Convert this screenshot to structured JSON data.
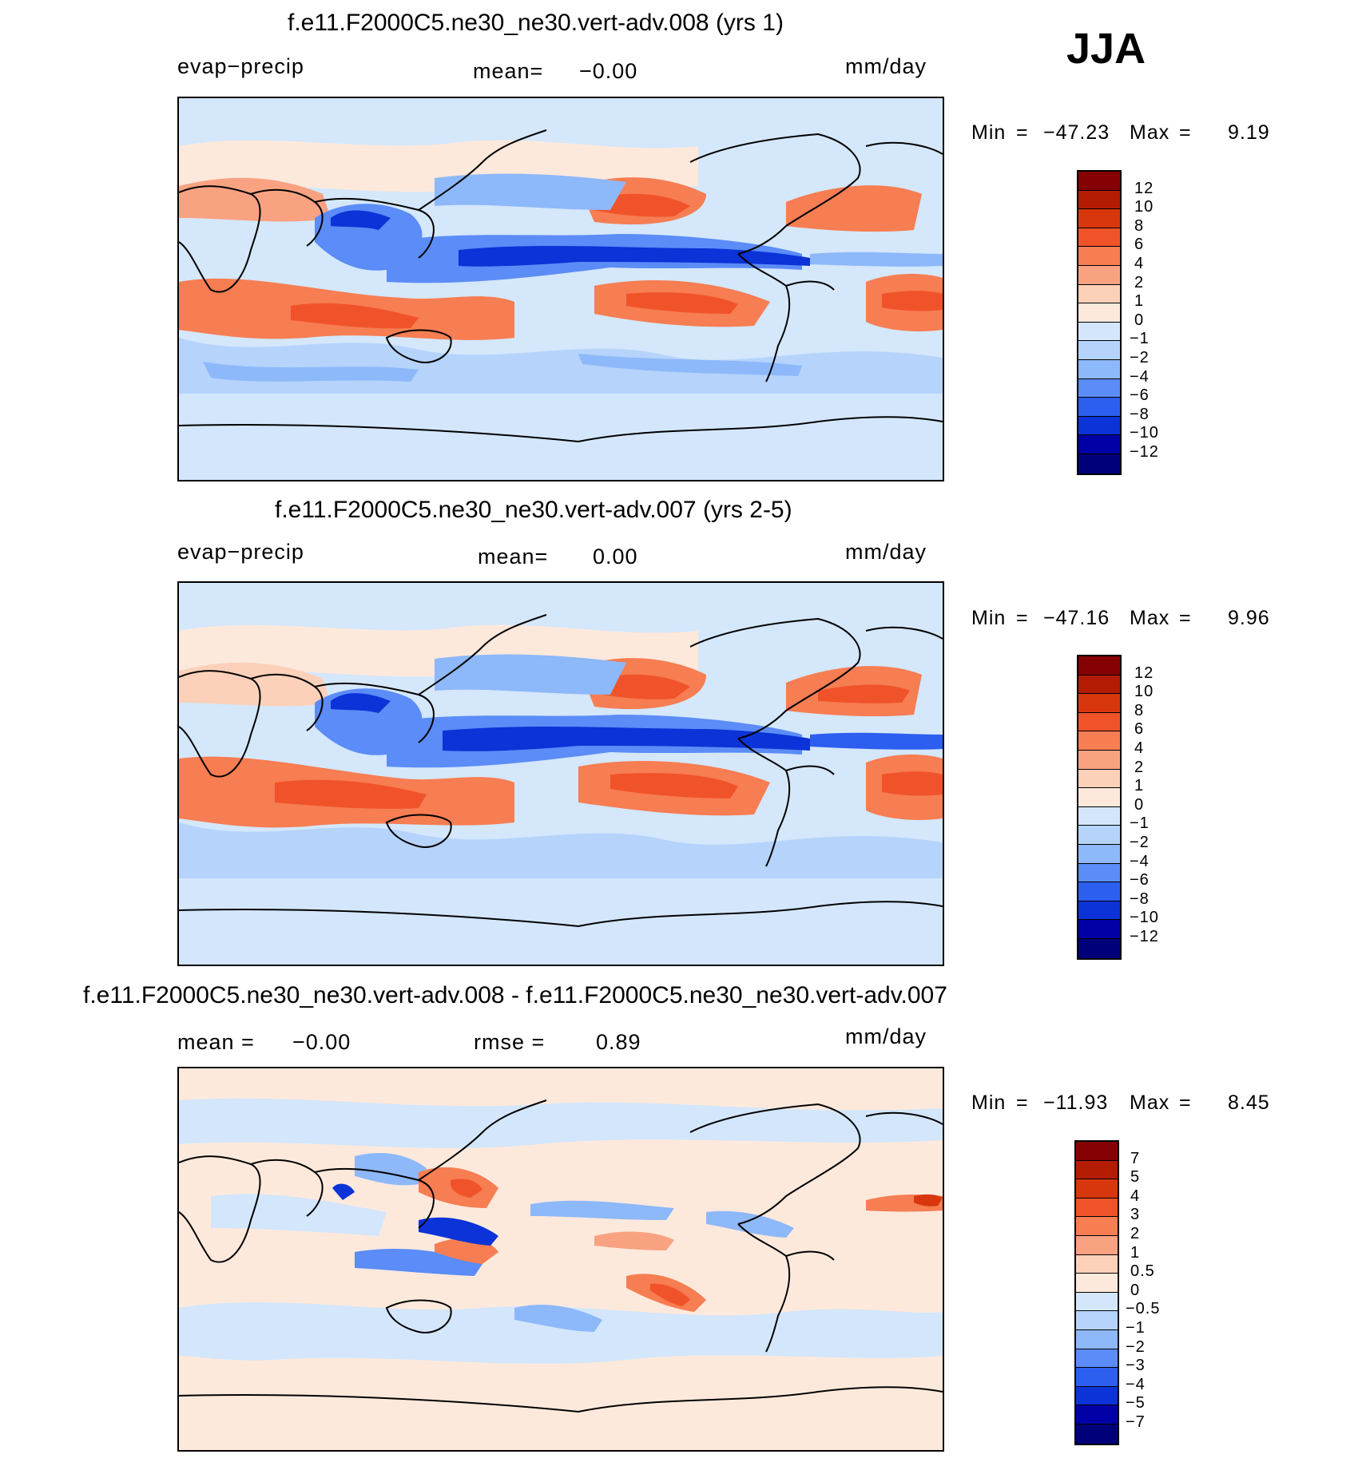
{
  "season": "JJA",
  "panels": [
    {
      "title": "f.e11.F2000C5.ne30_ne30.vert-adv.008 (yrs 1)",
      "left_label": "evap−precip",
      "center_label": "mean=",
      "center_value": "−0.00",
      "right_label": "mm/day",
      "min_label": "Min",
      "min_value": "−47.23",
      "max_label": "Max",
      "max_value": "9.19",
      "colorbar_labels": [
        "12",
        "10",
        "8",
        "6",
        "4",
        "2",
        "1",
        "0",
        "−1",
        "−2",
        "−4",
        "−6",
        "−8",
        "−10",
        "−12"
      ]
    },
    {
      "title": "f.e11.F2000C5.ne30_ne30.vert-adv.007 (yrs 2-5)",
      "left_label": "evap−precip",
      "center_label": "mean=",
      "center_value": "0.00",
      "right_label": "mm/day",
      "min_label": "Min",
      "min_value": "−47.16",
      "max_label": "Max",
      "max_value": "9.96",
      "colorbar_labels": [
        "12",
        "10",
        "8",
        "6",
        "4",
        "2",
        "1",
        "0",
        "−1",
        "−2",
        "−4",
        "−6",
        "−8",
        "−10",
        "−12"
      ]
    },
    {
      "title": "f.e11.F2000C5.ne30_ne30.vert-adv.008 - f.e11.F2000C5.ne30_ne30.vert-adv.007",
      "left_label": "mean =",
      "left_value": "−0.00",
      "center_label": "rmse =",
      "center_value": "0.89",
      "right_label": "mm/day",
      "min_label": "Min",
      "min_value": "−11.93",
      "max_label": "Max",
      "max_value": "8.45",
      "colorbar_labels": [
        "7",
        "5",
        "4",
        "3",
        "2",
        "1",
        "0.5",
        "0",
        "−0.5",
        "−1",
        "−2",
        "−3",
        "−4",
        "−5",
        "−7"
      ]
    }
  ],
  "colors": {
    "palette": [
      "#850002",
      "#b41c02",
      "#d8370d",
      "#f0532a",
      "#f77d52",
      "#f9a282",
      "#fcd0b9",
      "#fde9dc",
      "#d3e6fb",
      "#b5d3fb",
      "#8db8fa",
      "#5b8cf7",
      "#2c5ef0",
      "#0b33d7",
      "#0000a6",
      "#000078"
    ],
    "ocean_base": "#d4e7fb"
  }
}
